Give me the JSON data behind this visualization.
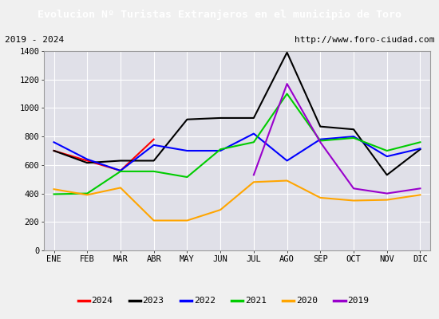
{
  "title": "Evolucion Nº Turistas Extranjeros en el municipio de Toro",
  "subtitle_left": "2019 - 2024",
  "subtitle_right": "http://www.foro-ciudad.com",
  "x_labels": [
    "ENE",
    "FEB",
    "MAR",
    "ABR",
    "MAY",
    "JUN",
    "JUL",
    "AGO",
    "SEP",
    "OCT",
    "NOV",
    "DIC"
  ],
  "ylim": [
    0,
    1400
  ],
  "yticks": [
    0,
    200,
    400,
    600,
    800,
    1000,
    1200,
    1400
  ],
  "series": {
    "2024": {
      "color": "#ff0000",
      "data": [
        700,
        630,
        560,
        780,
        null,
        null,
        null,
        null,
        null,
        null,
        null,
        null
      ]
    },
    "2023": {
      "color": "#000000",
      "data": [
        700,
        615,
        630,
        630,
        920,
        930,
        930,
        1390,
        870,
        850,
        530,
        710
      ]
    },
    "2022": {
      "color": "#0000ff",
      "data": [
        760,
        640,
        560,
        740,
        700,
        700,
        820,
        630,
        780,
        800,
        660,
        715
      ]
    },
    "2021": {
      "color": "#00cc00",
      "data": [
        395,
        400,
        555,
        555,
        515,
        710,
        760,
        1100,
        770,
        790,
        700,
        760
      ]
    },
    "2020": {
      "color": "#ffa500",
      "data": [
        430,
        390,
        440,
        210,
        210,
        285,
        480,
        490,
        370,
        350,
        355,
        390
      ]
    },
    "2019": {
      "color": "#9900cc",
      "data": [
        null,
        null,
        null,
        null,
        null,
        null,
        530,
        1170,
        760,
        435,
        400,
        435
      ]
    }
  },
  "title_bg_color": "#4472c4",
  "title_color": "#ffffff",
  "plot_bg_color": "#e0e0e8",
  "grid_color": "#ffffff",
  "outer_bg_color": "#f0f0f0",
  "border_color": "#999999"
}
